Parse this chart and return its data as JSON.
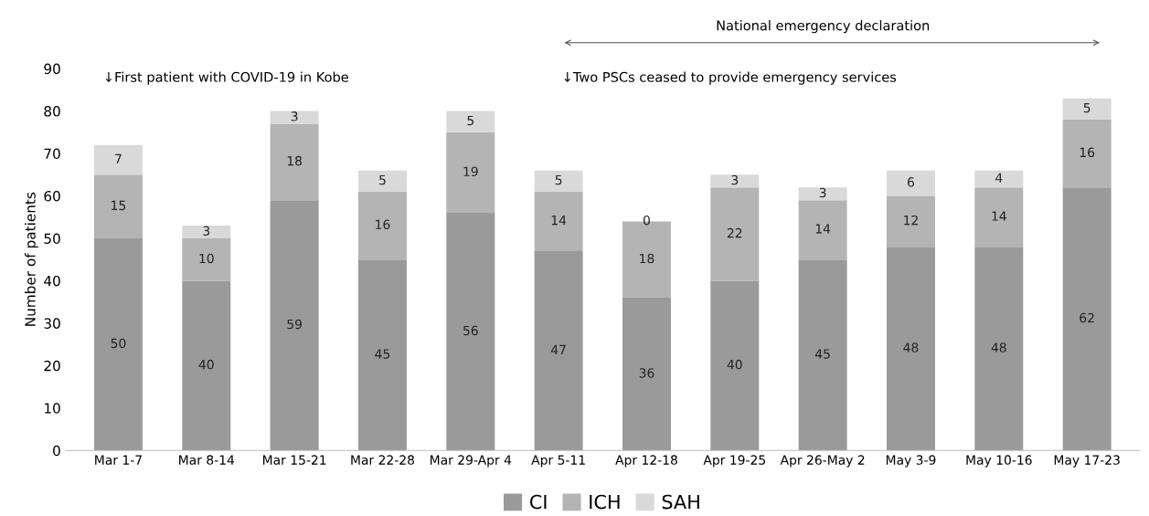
{
  "chart_data": {
    "type": "bar",
    "stacked": true,
    "ylabel": "Number of patients",
    "categories": [
      "Mar 1-7",
      "Mar 8-14",
      "Mar 15-21",
      "Mar 22-28",
      "Mar 29-Apr 4",
      "Apr 5-11",
      "Apr 12-18",
      "Apr 19-25",
      "Apr 26-May 2",
      "May 3-9",
      "May 10-16",
      "May 17-23"
    ],
    "series": [
      {
        "name": "CI",
        "color": "#9a9a9a",
        "values": [
          50,
          40,
          59,
          45,
          56,
          47,
          36,
          40,
          45,
          48,
          48,
          62
        ]
      },
      {
        "name": "ICH",
        "color": "#b4b4b4",
        "values": [
          15,
          10,
          18,
          16,
          19,
          14,
          18,
          22,
          14,
          12,
          14,
          16
        ]
      },
      {
        "name": "SAH",
        "color": "#d9d9d9",
        "values": [
          7,
          3,
          3,
          5,
          5,
          5,
          0,
          3,
          3,
          6,
          4,
          5
        ]
      }
    ],
    "ylim": [
      0,
      90
    ],
    "yticks": [
      0,
      10,
      20,
      30,
      40,
      50,
      60,
      70,
      80,
      90
    ],
    "data_labels": true,
    "grid": false,
    "legend": "bottom",
    "annotations": [
      "↓First patient with COVID-19 in Kobe",
      "↓Two PSCs ceased to provide emergency services",
      "National emergency declaration"
    ]
  }
}
